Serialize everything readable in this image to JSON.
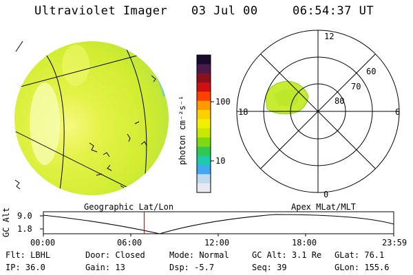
{
  "header": {
    "instrument": "Ultraviolet Imager",
    "date": "03 Jul 00",
    "time": "06:54:37 UT"
  },
  "colorbar": {
    "unit_label": "photon cm⁻²s⁻¹",
    "ticks": [
      "100",
      "10"
    ],
    "colors_top_to_bottom": [
      "#1a0a2e",
      "#4a1a4a",
      "#8a1020",
      "#d01010",
      "#ff4000",
      "#ff9a00",
      "#ffd000",
      "#f0f000",
      "#c8e800",
      "#80d810",
      "#30c850",
      "#20c8b0",
      "#40a8f0",
      "#c0d8f0",
      "#e8e8f0"
    ]
  },
  "left_panel": {
    "image": "earth-disk-uv-image",
    "dominant_color": "#e0f040"
  },
  "polar_plot": {
    "mlt_labels": {
      "top": "12",
      "left": "18",
      "right": "6",
      "bottom": "0"
    },
    "lat_labels": [
      "60",
      "70",
      "80"
    ],
    "blob_color": "#c8ec30"
  },
  "timeline": {
    "axis_label": "GC Alt",
    "y_ticks": [
      "9.0",
      "1.8"
    ],
    "left_title": "Geographic Lat/Lon",
    "right_title": "Apex MLat/MLT",
    "x_ticks": [
      "00:00",
      "06:00",
      "12:00",
      "18:00",
      "23:59"
    ],
    "current_marker_hours": 6.91,
    "marker_color": "#c00000"
  },
  "footer": {
    "row1": [
      {
        "label": "Flt:",
        "value": "LBHL"
      },
      {
        "label": "Door:",
        "value": "Closed"
      },
      {
        "label": "Mode:",
        "value": "Normal"
      },
      {
        "label": "GC Alt:",
        "value": "3.1 Re"
      },
      {
        "label": "GLat:",
        "value": "76.1"
      }
    ],
    "row2": [
      {
        "label": "IP:",
        "value": "36.0"
      },
      {
        "label": "Gain:",
        "value": "13"
      },
      {
        "label": "Dsp:",
        "value": "-5.7"
      },
      {
        "label": "Seq:",
        "value": "39"
      },
      {
        "label": "GLon:",
        "value": "155.6"
      }
    ]
  }
}
